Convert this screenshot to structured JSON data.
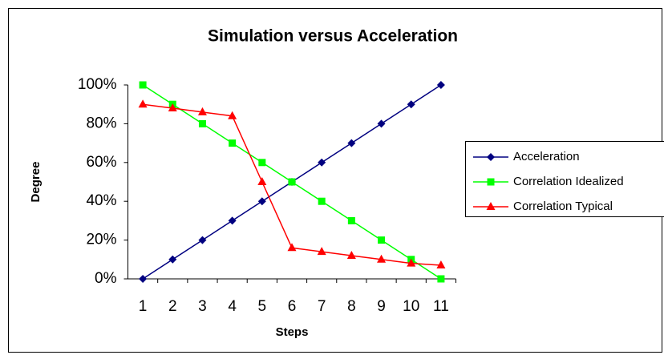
{
  "chart_data": {
    "type": "line",
    "title": "Simulation versus Acceleration",
    "xlabel": "Steps",
    "ylabel": "Degree",
    "categories": [
      "1",
      "2",
      "3",
      "4",
      "5",
      "6",
      "7",
      "8",
      "9",
      "10",
      "11"
    ],
    "series": [
      {
        "name": "Acceleration",
        "color": "#000080",
        "marker": "diamond",
        "values": [
          0,
          10,
          20,
          30,
          40,
          50,
          60,
          70,
          80,
          90,
          100
        ]
      },
      {
        "name": "Correlation Idealized",
        "color": "#00ff00",
        "marker": "square",
        "values": [
          100,
          90,
          80,
          70,
          60,
          50,
          40,
          30,
          20,
          10,
          0
        ]
      },
      {
        "name": "Correlation Typical",
        "color": "#ff0000",
        "marker": "triangle",
        "values": [
          90,
          88,
          86,
          84,
          50,
          16,
          14,
          12,
          10,
          8,
          7
        ]
      }
    ],
    "ylim": [
      0,
      100
    ],
    "yticks": [
      {
        "value": 0,
        "label": "0%"
      },
      {
        "value": 20,
        "label": "20%"
      },
      {
        "value": 40,
        "label": "40%"
      },
      {
        "value": 60,
        "label": "60%"
      },
      {
        "value": 80,
        "label": "80%"
      },
      {
        "value": 100,
        "label": "100%"
      }
    ],
    "grid": false,
    "legend": "right"
  }
}
